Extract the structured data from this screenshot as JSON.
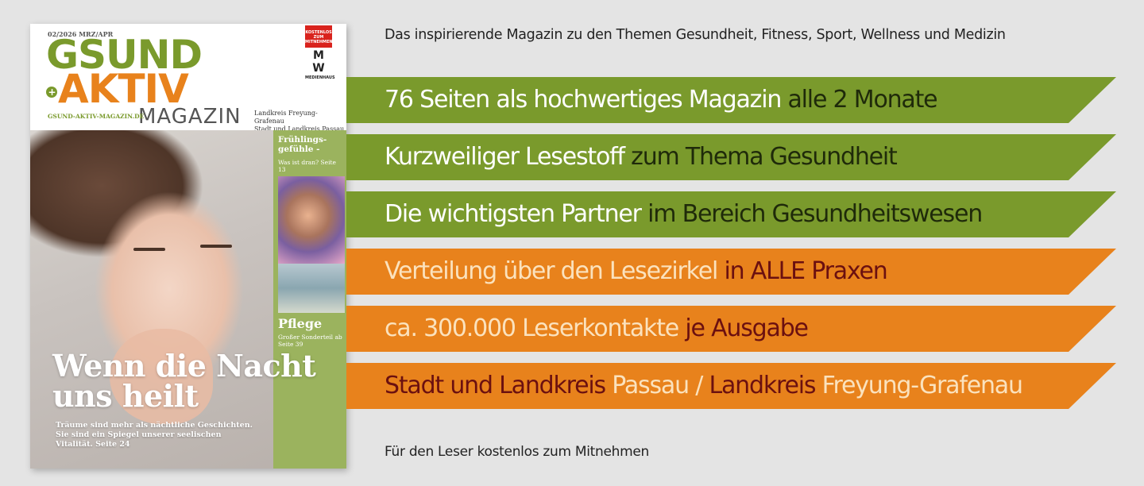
{
  "cover": {
    "issue": "02/2026 MRZ/APR",
    "logo_line1": "GSUND",
    "logo_line2": "AKTIV",
    "logo_line3": "MAGAZIN",
    "url": "GSUND-AKTIV-MAGAZIN.DE",
    "region_line1": "Landkreis Freyung-Grafenau",
    "region_line2": "Stadt und Landkreis Passau",
    "badge_free": "KOSTENLOS ZUM MITNEHMEN",
    "badge_mw": "M W",
    "badge_mw_sub": "MEDIENHAUS",
    "sidebar_title": "Frühlings-gefühle -",
    "sidebar_sub": "Was ist dran? Seite 13",
    "sidebar_pflege": "Pflege",
    "sidebar_pflege_sub": "Großer Sonderteil ab Seite 39",
    "headline": "Wenn die Nacht uns heilt",
    "teaser": "Träume sind mehr als nächtliche Geschichten. Sie sind ein Spiegel unserer seelischen Vitalität. Seite 24"
  },
  "tagline": "Das inspirierende Magazin zu den Themen Gesundheit, Fitness, Sport, Wellness und Medizin",
  "bands": [
    {
      "color": "green",
      "part1": "76 Seiten als hochwertiges Magazin",
      "part2": " alle 2 Monate",
      "part3": "",
      "part4": ""
    },
    {
      "color": "green",
      "part1": "Kurzweiliger Lesestoff",
      "part2": " zum Thema Gesundheit",
      "part3": "",
      "part4": ""
    },
    {
      "color": "green",
      "part1": "Die wichtigsten Partner",
      "part2": " im Bereich Gesundheitswesen",
      "part3": "",
      "part4": ""
    },
    {
      "color": "orange",
      "part1": "Verteilung über den Lesezirkel",
      "part2": " in ALLE Praxen",
      "part3": "",
      "part4": ""
    },
    {
      "color": "orange",
      "part1": "ca. 300.000 Leserkontakte",
      "part2": " je Ausgabe",
      "part3": "",
      "part4": ""
    },
    {
      "color": "orange",
      "part1": "Stadt und Landkreis",
      "part2": " Passau / ",
      "part3": "Landkreis",
      "part4": " Freyung-Grafenau"
    }
  ],
  "colors": {
    "green_band": "#7a9a2c",
    "orange_band": "#e8821c",
    "dark_green_text": "#1f2a0a",
    "dark_red_text": "#6b1010",
    "light_orange_text": "#fbe2bd",
    "white": "#ffffff"
  },
  "footer": "Für den Leser kostenlos zum Mitnehmen"
}
